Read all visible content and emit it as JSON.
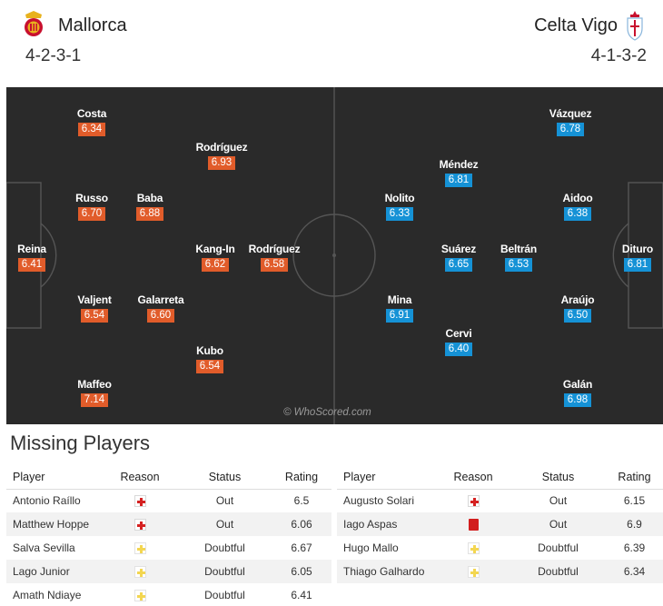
{
  "header": {
    "home": {
      "name": "Mallorca",
      "formation": "4-2-3-1",
      "crest": "mallorca-crest-icon"
    },
    "away": {
      "name": "Celta Vigo",
      "formation": "4-1-3-2",
      "crest": "celta-vigo-crest-icon"
    }
  },
  "colors": {
    "home_rating": "#e15c2a",
    "away_rating": "#1592d6",
    "pitch": "#2a2a2a"
  },
  "pitch": {
    "watermark": "© WhoScored.com",
    "home_players": [
      {
        "name": "Costa",
        "rating": "6.34"
      },
      {
        "name": "Rodríguez",
        "rating": "6.93"
      },
      {
        "name": "Russo",
        "rating": "6.70"
      },
      {
        "name": "Baba",
        "rating": "6.88"
      },
      {
        "name": "Reina",
        "rating": "6.41"
      },
      {
        "name": "Kang-In",
        "rating": "6.62"
      },
      {
        "name": "Rodríguez",
        "rating": "6.58"
      },
      {
        "name": "Valjent",
        "rating": "6.54"
      },
      {
        "name": "Galarreta",
        "rating": "6.60"
      },
      {
        "name": "Kubo",
        "rating": "6.54"
      },
      {
        "name": "Maffeo",
        "rating": "7.14"
      }
    ],
    "away_players": [
      {
        "name": "Vázquez",
        "rating": "6.78"
      },
      {
        "name": "Méndez",
        "rating": "6.81"
      },
      {
        "name": "Nolito",
        "rating": "6.33"
      },
      {
        "name": "Aidoo",
        "rating": "6.38"
      },
      {
        "name": "Suárez",
        "rating": "6.65"
      },
      {
        "name": "Beltrán",
        "rating": "6.53"
      },
      {
        "name": "Dituro",
        "rating": "6.81"
      },
      {
        "name": "Mina",
        "rating": "6.91"
      },
      {
        "name": "Araújo",
        "rating": "6.50"
      },
      {
        "name": "Cervi",
        "rating": "6.40"
      },
      {
        "name": "Galán",
        "rating": "6.98"
      }
    ]
  },
  "missing": {
    "title": "Missing Players",
    "headers": {
      "player": "Player",
      "reason": "Reason",
      "status": "Status",
      "rating": "Rating"
    },
    "home": [
      {
        "player": "Antonio Raíllo",
        "reason": "injury-icon",
        "status": "Out",
        "rating": "6.5"
      },
      {
        "player": "Matthew Hoppe",
        "reason": "injury-icon",
        "status": "Out",
        "rating": "6.06"
      },
      {
        "player": "Salva Sevilla",
        "reason": "doubtful-icon",
        "status": "Doubtful",
        "rating": "6.67"
      },
      {
        "player": "Lago Junior",
        "reason": "doubtful-icon",
        "status": "Doubtful",
        "rating": "6.05"
      },
      {
        "player": "Amath Ndiaye",
        "reason": "doubtful-icon",
        "status": "Doubtful",
        "rating": "6.41"
      }
    ],
    "away": [
      {
        "player": "Augusto Solari",
        "reason": "injury-icon",
        "status": "Out",
        "rating": "6.15"
      },
      {
        "player": "Iago Aspas",
        "reason": "red-card-icon",
        "status": "Out",
        "rating": "6.9"
      },
      {
        "player": "Hugo Mallo",
        "reason": "doubtful-icon",
        "status": "Doubtful",
        "rating": "6.39"
      },
      {
        "player": "Thiago Galhardo",
        "reason": "doubtful-icon",
        "status": "Doubtful",
        "rating": "6.34"
      }
    ]
  }
}
